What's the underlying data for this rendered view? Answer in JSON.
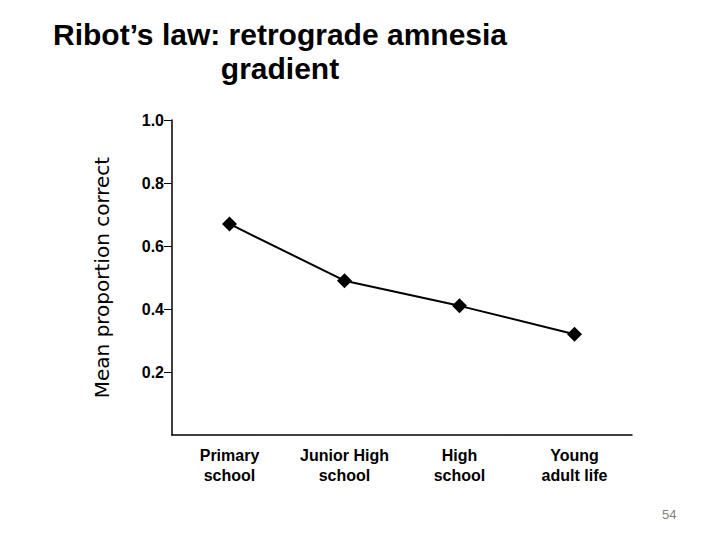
{
  "chart_data": {
    "type": "line",
    "title": "Ribot’s law: retrograde amnesia\ngradient",
    "y_label": "Mean proportion correct",
    "categories": [
      "Primary\nschool",
      "Junior High\nschool",
      "High\nschool",
      "Young\nadult life"
    ],
    "values": [
      0.67,
      0.49,
      0.41,
      0.32
    ],
    "color": "#000000",
    "marker": "diamond",
    "line_style": "solid",
    "ylim": [
      0,
      1
    ],
    "yticks": [
      0.2,
      0.4,
      0.6,
      {
        "value": 0.8,
        "label": "0.8"
      },
      {
        "value": 1,
        "label": "1.0"
      }
    ],
    "grid": false
  },
  "slide": {
    "page_number": "54"
  }
}
